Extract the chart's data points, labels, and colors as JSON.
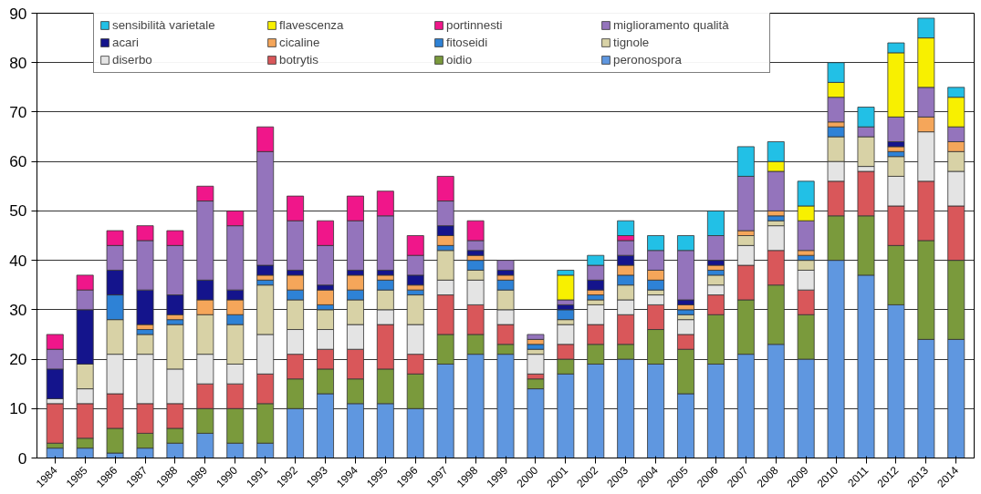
{
  "chart_data": {
    "type": "bar",
    "stacked": true,
    "categories": [
      "1984",
      "1985",
      "1986",
      "1987",
      "1988",
      "1989",
      "1990",
      "1991",
      "1992",
      "1993",
      "1994",
      "1995",
      "1996",
      "1997",
      "1998",
      "1999",
      "2000",
      "2001",
      "2002",
      "2003",
      "2004",
      "2005",
      "2006",
      "2007",
      "2008",
      "2009",
      "2010",
      "2011",
      "2012",
      "2013",
      "2014"
    ],
    "ylim": [
      0,
      90
    ],
    "yticks": [
      0,
      10,
      20,
      30,
      40,
      50,
      60,
      70,
      80,
      90
    ],
    "grid": "y",
    "legend": "top",
    "series": [
      {
        "name": "peronospora",
        "color": "#5f97e0",
        "values": [
          2,
          2,
          1,
          2,
          3,
          5,
          3,
          3,
          10,
          13,
          11,
          11,
          10,
          19,
          21,
          21,
          14,
          17,
          19,
          20,
          19,
          13,
          19,
          21,
          23,
          20,
          40,
          37,
          31,
          24,
          24
        ]
      },
      {
        "name": "oidio",
        "color": "#7a9a3c",
        "values": [
          1,
          2,
          5,
          3,
          3,
          5,
          7,
          8,
          6,
          5,
          5,
          7,
          7,
          6,
          4,
          2,
          2,
          3,
          4,
          3,
          7,
          9,
          10,
          11,
          12,
          9,
          9,
          12,
          12,
          20,
          16
        ]
      },
      {
        "name": "botrytis",
        "color": "#d9575a",
        "values": [
          8,
          7,
          7,
          6,
          5,
          5,
          5,
          6,
          5,
          4,
          6,
          9,
          4,
          8,
          6,
          4,
          1,
          3,
          4,
          6,
          5,
          3,
          4,
          7,
          7,
          5,
          7,
          9,
          8,
          12,
          11
        ]
      },
      {
        "name": "diserbo",
        "color": "#e4e4e4",
        "values": [
          1,
          3,
          8,
          10,
          7,
          6,
          4,
          8,
          5,
          4,
          5,
          3,
          6,
          3,
          5,
          3,
          4,
          4,
          4,
          3,
          2,
          3,
          2,
          4,
          5,
          4,
          4,
          1,
          6,
          10,
          7
        ]
      },
      {
        "name": "tignole",
        "color": "#d8d2a6",
        "values": [
          null,
          5,
          7,
          4,
          9,
          8,
          8,
          10,
          6,
          4,
          5,
          4,
          6,
          6,
          2,
          4,
          1,
          1,
          1,
          3,
          1,
          1,
          2,
          2,
          1,
          2,
          5,
          6,
          4,
          null,
          4
        ]
      },
      {
        "name": "fitoseidi",
        "color": "#2e82d6",
        "values": [
          null,
          null,
          5,
          1,
          1,
          null,
          2,
          1,
          2,
          1,
          2,
          2,
          1,
          1,
          2,
          2,
          1,
          2,
          1,
          2,
          2,
          1,
          1,
          null,
          1,
          1,
          2,
          null,
          1,
          null,
          null
        ]
      },
      {
        "name": "cicaline",
        "color": "#f5a65a",
        "values": [
          null,
          null,
          null,
          1,
          1,
          3,
          3,
          1,
          3,
          3,
          3,
          1,
          1,
          2,
          1,
          1,
          1,
          null,
          1,
          2,
          2,
          1,
          1,
          1,
          1,
          1,
          1,
          null,
          1,
          3,
          2
        ]
      },
      {
        "name": "acari",
        "color": "#14148c",
        "values": [
          6,
          11,
          5,
          7,
          4,
          4,
          2,
          2,
          1,
          1,
          1,
          1,
          2,
          2,
          1,
          1,
          null,
          1,
          2,
          2,
          null,
          1,
          1,
          null,
          null,
          null,
          null,
          null,
          1,
          null,
          null
        ]
      },
      {
        "name": "miglioramento qualità",
        "color": "#9474bc",
        "values": [
          4,
          4,
          5,
          10,
          10,
          16,
          13,
          23,
          10,
          8,
          10,
          11,
          4,
          5,
          2,
          2,
          1,
          1,
          3,
          3,
          4,
          10,
          5,
          11,
          8,
          6,
          5,
          2,
          5,
          6,
          3
        ]
      },
      {
        "name": "portinnesti",
        "color": "#f0168a",
        "values": [
          3,
          3,
          3,
          3,
          3,
          3,
          3,
          5,
          5,
          5,
          5,
          5,
          4,
          5,
          4,
          null,
          null,
          null,
          null,
          1,
          null,
          null,
          null,
          null,
          null,
          null,
          null,
          null,
          null,
          null,
          null
        ]
      },
      {
        "name": "flavescenza",
        "color": "#f8f000",
        "values": [
          null,
          null,
          null,
          null,
          null,
          null,
          null,
          null,
          null,
          null,
          null,
          null,
          null,
          null,
          null,
          null,
          null,
          5,
          null,
          null,
          null,
          null,
          null,
          null,
          2,
          3,
          3,
          null,
          13,
          10,
          6
        ]
      },
      {
        "name": "sensibilità varietale",
        "color": "#22c0e6",
        "values": [
          null,
          null,
          null,
          null,
          null,
          null,
          null,
          null,
          null,
          null,
          null,
          null,
          null,
          null,
          null,
          null,
          null,
          1,
          2,
          3,
          3,
          3,
          5,
          6,
          4,
          5,
          4,
          4,
          2,
          4,
          2
        ]
      }
    ]
  }
}
